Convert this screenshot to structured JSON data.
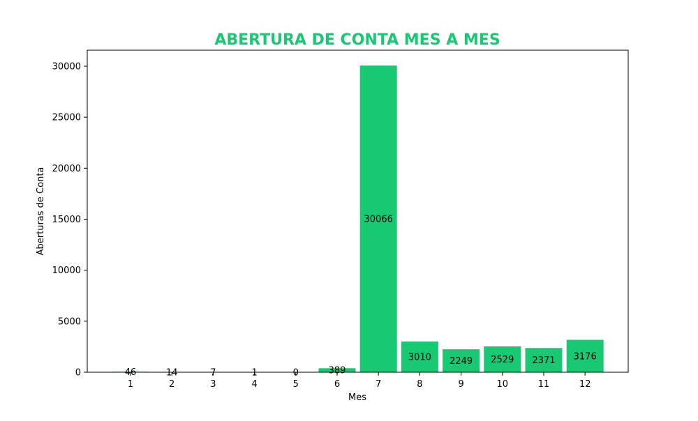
{
  "chart_data": {
    "type": "bar",
    "title": "ABERTURA DE CONTA MES A MES",
    "xlabel": "Mes",
    "ylabel": "Aberturas de Conta",
    "categories": [
      "1",
      "2",
      "3",
      "4",
      "5",
      "6",
      "7",
      "8",
      "9",
      "10",
      "11",
      "12"
    ],
    "values": [
      46,
      14,
      7,
      1,
      0,
      389,
      30066,
      3010,
      2249,
      2529,
      2371,
      3176
    ],
    "value_labels": [
      "46",
      "14",
      "7",
      "1",
      "0",
      "389",
      "30066",
      "3010",
      "2249",
      "2529",
      "2371",
      "3176"
    ],
    "ylim": [
      0,
      31570
    ],
    "yticks": [
      0,
      5000,
      10000,
      15000,
      20000,
      25000,
      30000
    ],
    "ytick_labels": [
      "0",
      "5000",
      "10000",
      "15000",
      "20000",
      "25000",
      "30000"
    ],
    "grid": false,
    "colors": {
      "bar": "#18c872",
      "title": "#18c872",
      "text": "#000000",
      "axis": "#000000"
    }
  }
}
